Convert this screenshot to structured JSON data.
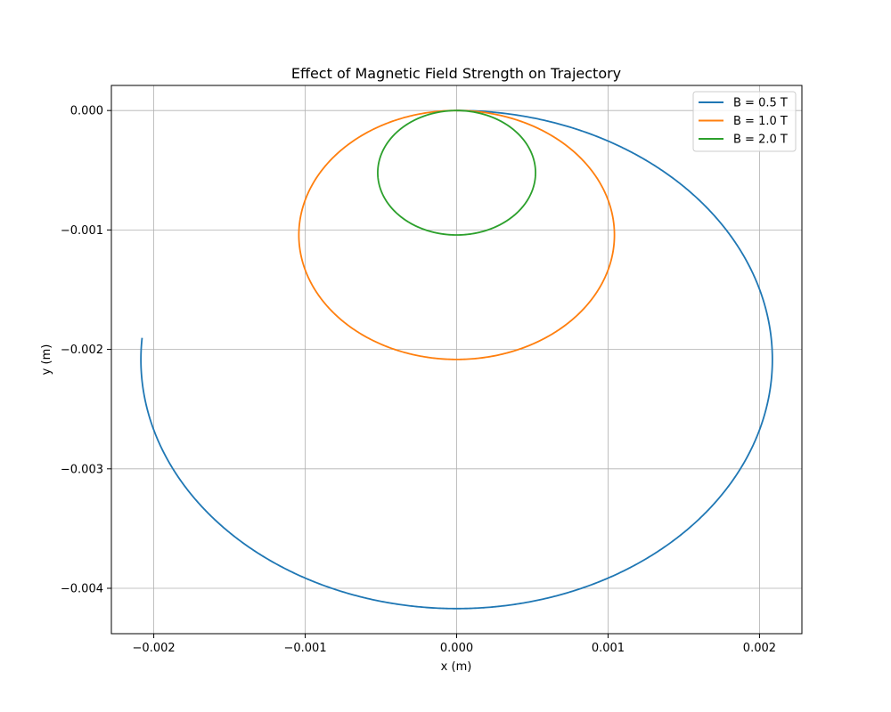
{
  "chart_data": {
    "type": "line",
    "title": "Effect of Magnetic Field Strength on Trajectory",
    "xlabel": "x (m)",
    "ylabel": "y (m)",
    "xlim": [
      -0.00228,
      0.00228
    ],
    "ylim": [
      -0.00438,
      0.00021
    ],
    "xticks": [
      {
        "value": -0.002,
        "label": "−0.002"
      },
      {
        "value": -0.001,
        "label": "−0.001"
      },
      {
        "value": 0.0,
        "label": "0.000"
      },
      {
        "value": 0.001,
        "label": "0.001"
      },
      {
        "value": 0.002,
        "label": "0.002"
      }
    ],
    "yticks": [
      {
        "value": 0.0,
        "label": "0.000"
      },
      {
        "value": -0.001,
        "label": "−0.001"
      },
      {
        "value": -0.002,
        "label": "−0.002"
      },
      {
        "value": -0.003,
        "label": "−0.003"
      },
      {
        "value": -0.004,
        "label": "−0.004"
      }
    ],
    "grid": true,
    "legend_position": "top-right",
    "series": [
      {
        "name": "B = 0.5 T",
        "color": "#1f77b4",
        "center": [
          0.0,
          -0.002085
        ],
        "radius": 0.002085,
        "start_angle_deg": 90,
        "sweep_deg": -275
      },
      {
        "name": "B = 1.0 T",
        "color": "#ff7f0e",
        "center": [
          0.0,
          -0.001042
        ],
        "radius": 0.001042,
        "start_angle_deg": 90,
        "sweep_deg": -550
      },
      {
        "name": "B = 2.0 T",
        "color": "#2ca02c",
        "center": [
          0.0,
          -0.000521
        ],
        "radius": 0.000521,
        "start_angle_deg": 90,
        "sweep_deg": -1100
      }
    ]
  }
}
